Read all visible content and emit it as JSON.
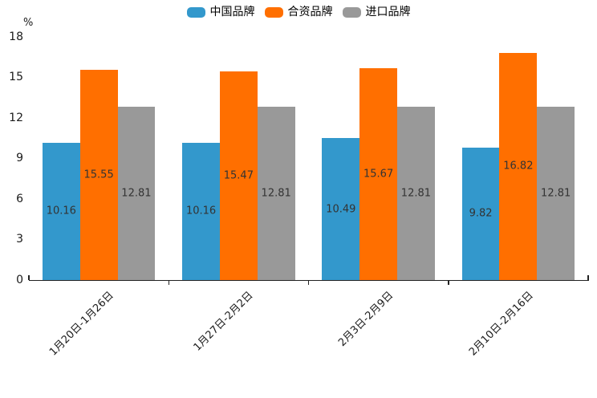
{
  "chart_data": {
    "type": "bar",
    "title": "",
    "categories": [
      "1月20日-1月26日",
      "1月27日-2月2日",
      "2月3日-2月9日",
      "2月10日-2月16日"
    ],
    "series": [
      {
        "name": "中国品牌",
        "color": "#3398CC",
        "values": [
          10.16,
          10.16,
          10.49,
          9.82
        ]
      },
      {
        "name": "合资品牌",
        "color": "#FF6F00",
        "values": [
          15.55,
          15.47,
          15.67,
          16.82
        ]
      },
      {
        "name": "进口品牌",
        "color": "#999999",
        "values": [
          12.81,
          12.81,
          12.81,
          12.81
        ]
      }
    ],
    "y_axis": {
      "unit": "%",
      "min": 0,
      "max": 18,
      "tick_interval": 3,
      "ticks": [
        0,
        3,
        6,
        9,
        12,
        15,
        18
      ]
    },
    "xlabel": "",
    "ylabel": "%",
    "legend_position": "top",
    "grid": false,
    "value_labels": "inside-center",
    "axis_color": "#222222",
    "label_color": "#333333"
  }
}
